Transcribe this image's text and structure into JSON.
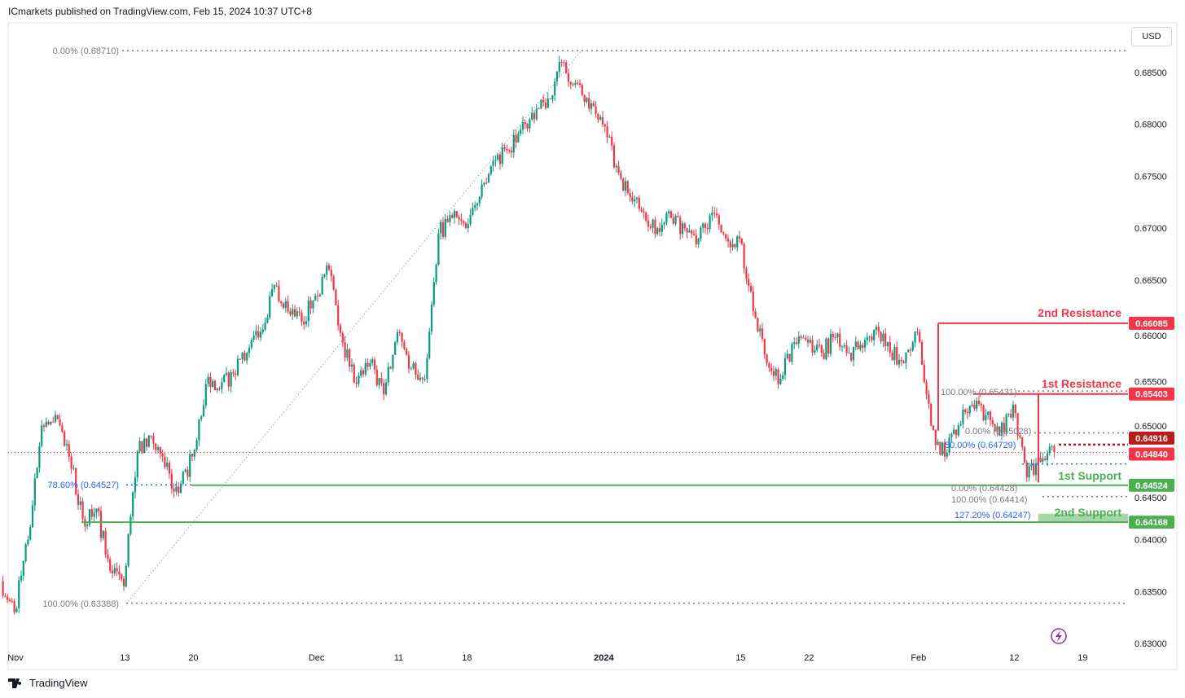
{
  "header": {
    "published": "ICmarkets published on TradingView.com, Feb 15, 2024 10:37 UTC+8"
  },
  "currency_button": "USD",
  "footer": {
    "logo_text": "TradingView"
  },
  "colors": {
    "up": "#089981",
    "down": "#f23645",
    "support": "#4caf50",
    "resistance": "#f23645",
    "fib_blue": "#2962ff",
    "grey": "#787b86",
    "current": "#f23645",
    "dark_red": "#b71c1c"
  },
  "chart_data": {
    "type": "candlestick",
    "symbol_note": "AUDUSD-style price chart",
    "ylim": [
      0.63,
      0.6885
    ],
    "y_ticks": [
      "0.68500",
      "0.68000",
      "0.67500",
      "0.67000",
      "0.66500",
      "0.66000",
      "0.65500",
      "0.65000",
      "0.64500",
      "0.64000",
      "0.63500",
      "0.63000"
    ],
    "x_ticks": [
      {
        "label": "Nov",
        "date": "2023-11-01"
      },
      {
        "label": "13",
        "date": "2023-11-13"
      },
      {
        "label": "20",
        "date": "2023-11-20"
      },
      {
        "label": "Dec",
        "date": "2023-12-01"
      },
      {
        "label": "11",
        "date": "2023-12-11"
      },
      {
        "label": "18",
        "date": "2023-12-18"
      },
      {
        "label": "2024",
        "date": "2024-01-01"
      },
      {
        "label": "15",
        "date": "2024-01-15"
      },
      {
        "label": "22",
        "date": "2024-01-22"
      },
      {
        "label": "Feb",
        "date": "2024-02-01"
      },
      {
        "label": "12",
        "date": "2024-02-12"
      },
      {
        "label": "19",
        "date": "2024-02-19"
      }
    ],
    "price_path": [
      [
        "2023-10-31",
        0.636
      ],
      [
        "2023-11-01",
        0.633
      ],
      [
        "2023-11-02",
        0.64
      ],
      [
        "2023-11-03",
        0.651
      ],
      [
        "2023-11-06",
        0.652
      ],
      [
        "2023-11-07",
        0.648
      ],
      [
        "2023-11-08",
        0.642
      ],
      [
        "2023-11-09",
        0.643
      ],
      [
        "2023-11-10",
        0.637
      ],
      [
        "2023-11-13",
        0.6355
      ],
      [
        "2023-11-14",
        0.6485
      ],
      [
        "2023-11-15",
        0.65
      ],
      [
        "2023-11-16",
        0.647
      ],
      [
        "2023-11-17",
        0.6445
      ],
      [
        "2023-11-20",
        0.648
      ],
      [
        "2023-11-21",
        0.655
      ],
      [
        "2023-11-22",
        0.6545
      ],
      [
        "2023-11-23",
        0.656
      ],
      [
        "2023-11-24",
        0.658
      ],
      [
        "2023-11-27",
        0.66
      ],
      [
        "2023-11-28",
        0.6645
      ],
      [
        "2023-11-29",
        0.662
      ],
      [
        "2023-11-30",
        0.661
      ],
      [
        "2023-12-01",
        0.6635
      ],
      [
        "2023-12-04",
        0.666
      ],
      [
        "2023-12-05",
        0.659
      ],
      [
        "2023-12-06",
        0.655
      ],
      [
        "2023-12-07",
        0.657
      ],
      [
        "2023-12-08",
        0.654
      ],
      [
        "2023-12-11",
        0.66
      ],
      [
        "2023-12-12",
        0.6565
      ],
      [
        "2023-12-13",
        0.6555
      ],
      [
        "2023-12-14",
        0.6695
      ],
      [
        "2023-12-15",
        0.671
      ],
      [
        "2023-12-18",
        0.67
      ],
      [
        "2023-12-19",
        0.673
      ],
      [
        "2023-12-20",
        0.6765
      ],
      [
        "2023-12-21",
        0.6775
      ],
      [
        "2023-12-22",
        0.6795
      ],
      [
        "2023-12-25",
        0.6805
      ],
      [
        "2023-12-26",
        0.6825
      ],
      [
        "2023-12-27",
        0.686
      ],
      [
        "2023-12-28",
        0.684
      ],
      [
        "2023-12-29",
        0.6815
      ],
      [
        "2024-01-01",
        0.68
      ],
      [
        "2024-01-02",
        0.676
      ],
      [
        "2024-01-03",
        0.673
      ],
      [
        "2024-01-04",
        0.6715
      ],
      [
        "2024-01-05",
        0.67
      ],
      [
        "2024-01-08",
        0.671
      ],
      [
        "2024-01-09",
        0.67
      ],
      [
        "2024-01-10",
        0.669
      ],
      [
        "2024-01-11",
        0.6715
      ],
      [
        "2024-01-12",
        0.669
      ],
      [
        "2024-01-15",
        0.669
      ],
      [
        "2024-01-16",
        0.662
      ],
      [
        "2024-01-17",
        0.657
      ],
      [
        "2024-01-18",
        0.6555
      ],
      [
        "2024-01-19",
        0.659
      ],
      [
        "2024-01-22",
        0.659
      ],
      [
        "2024-01-23",
        0.658
      ],
      [
        "2024-01-24",
        0.6595
      ],
      [
        "2024-01-25",
        0.658
      ],
      [
        "2024-01-26",
        0.6585
      ],
      [
        "2024-01-29",
        0.6605
      ],
      [
        "2024-01-30",
        0.658
      ],
      [
        "2024-01-31",
        0.657
      ],
      [
        "2024-02-01",
        0.66
      ],
      [
        "2024-02-02",
        0.651
      ],
      [
        "2024-02-05",
        0.648
      ],
      [
        "2024-02-06",
        0.651
      ],
      [
        "2024-02-07",
        0.653
      ],
      [
        "2024-02-08",
        0.652
      ],
      [
        "2024-02-09",
        0.65
      ],
      [
        "2024-02-12",
        0.653
      ],
      [
        "2024-02-13",
        0.646
      ],
      [
        "2024-02-14",
        0.6475
      ],
      [
        "2024-02-15",
        0.6484
      ]
    ],
    "current_price": "0.64840",
    "levels": [
      {
        "name": "2nd Resistance",
        "price": 0.66085,
        "label": "0.66085",
        "type": "resistance"
      },
      {
        "name": "1st Resistance",
        "price": 0.65403,
        "label": "0.65403",
        "type": "resistance"
      },
      {
        "name": "1st Support",
        "price": 0.64524,
        "label": "0.64524",
        "type": "support"
      },
      {
        "name": "2nd Support",
        "price": 0.64168,
        "label": "0.64168",
        "type": "support"
      }
    ],
    "extra_price_label": "0.64916",
    "fib_labels": {
      "top": "0.00% (0.68710)",
      "bottom": "100.00% (0.63388)",
      "f786": "78.60% (0.64527)",
      "r100": "100.00% (0.65431)",
      "r0": "0.00% (0.65028)",
      "r50": "50.00% (0.64729)",
      "s0": "0.00% (0.64428)",
      "s100": "100.00% (0.64414)",
      "s1272": "127.20% (0.64247)"
    }
  }
}
